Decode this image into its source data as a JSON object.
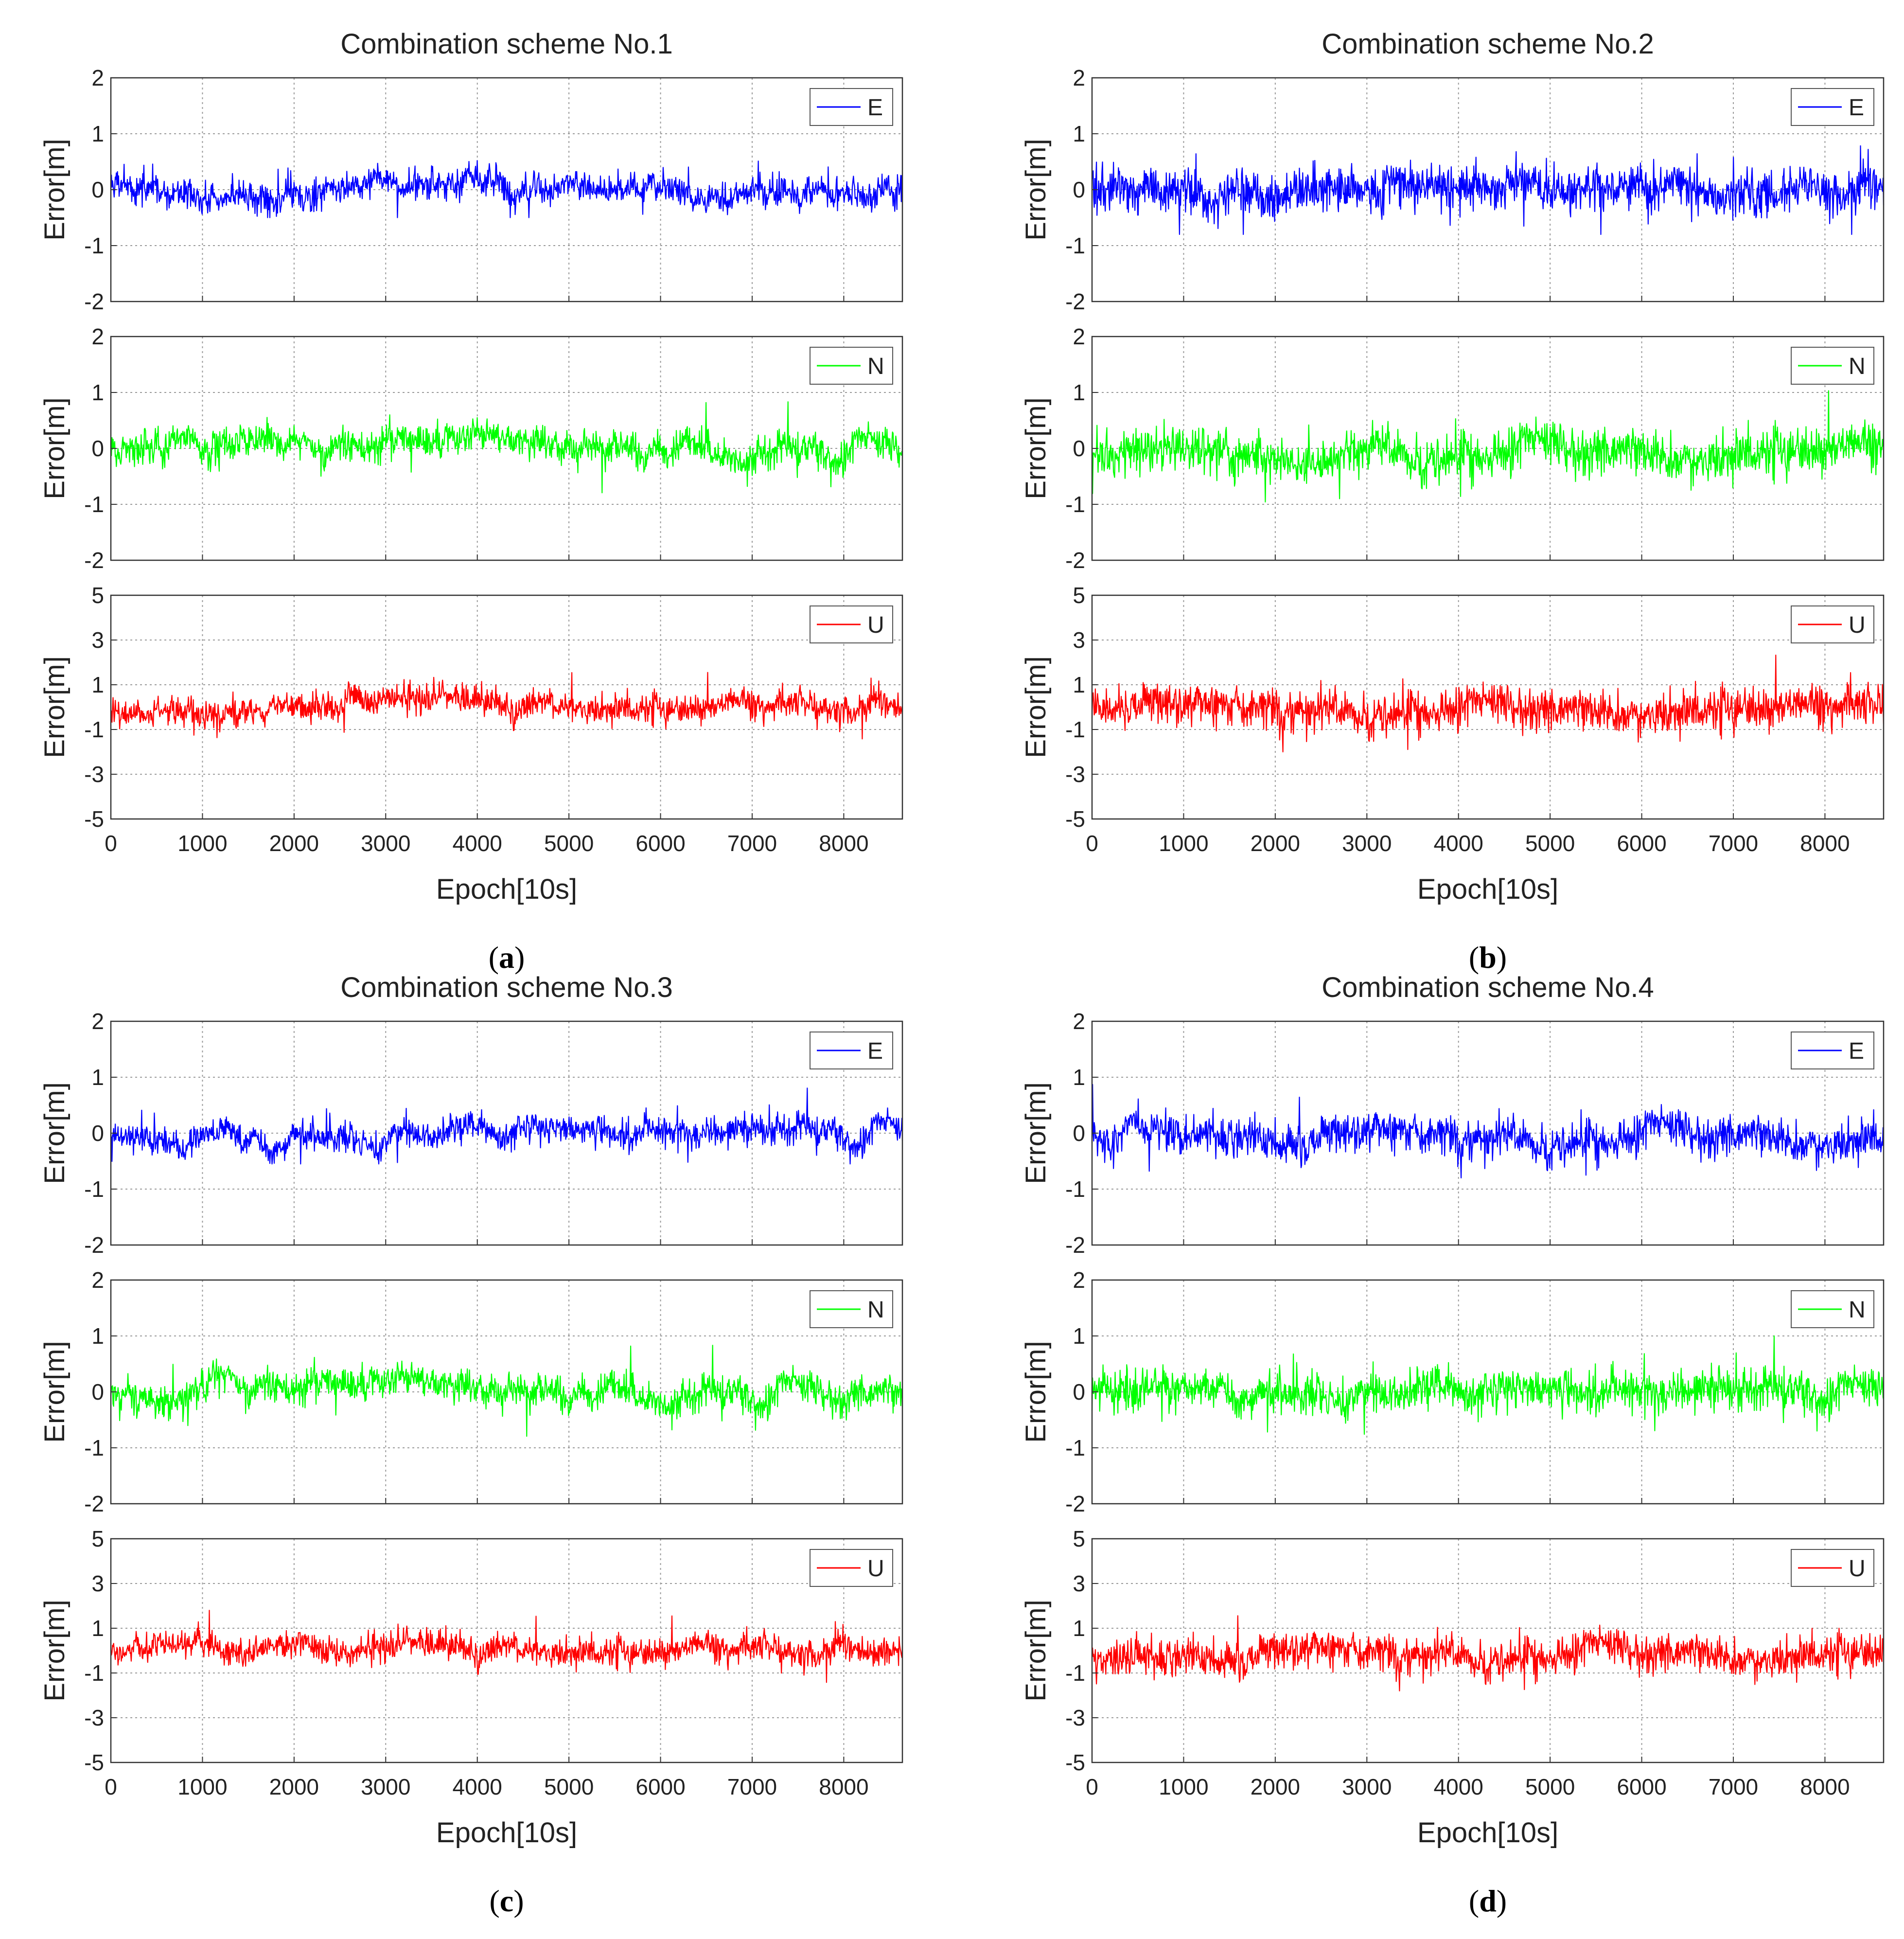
{
  "figure": {
    "axes_common": {
      "ylabel": "Error[m]",
      "xlabel": "Epoch[10s]",
      "x_ticks": [
        "0",
        "1000",
        "2000",
        "3000",
        "4000",
        "5000",
        "6000",
        "7000",
        "8000"
      ],
      "x_tick_values": [
        0,
        1000,
        2000,
        3000,
        4000,
        5000,
        6000,
        7000,
        8000
      ],
      "xlim": [
        0,
        8640
      ],
      "grid": true
    },
    "colors": {
      "E": "#0000ff",
      "N": "#00ff00",
      "U": "#ff0000"
    }
  },
  "chart_data": [
    {
      "id": "a",
      "type": "line",
      "title": "Combination scheme No.1",
      "caption_letter": "a",
      "panels": [
        {
          "component": "E",
          "legend": "E",
          "ylim": [
            -2,
            2
          ],
          "y_ticks": [
            "2",
            "1",
            "0",
            "-1",
            "-2"
          ],
          "y_tick_values": [
            2,
            1,
            0,
            -1,
            -2
          ],
          "noise_std": 0.13,
          "drift_amp": 0.15,
          "range": [
            -0.5,
            0.95
          ],
          "seed": 11
        },
        {
          "component": "N",
          "legend": "N",
          "ylim": [
            -2,
            2
          ],
          "y_ticks": [
            "2",
            "1",
            "0",
            "-1",
            "-2"
          ],
          "y_tick_values": [
            2,
            1,
            0,
            -1,
            -2
          ],
          "noise_std": 0.14,
          "drift_amp": 0.15,
          "range": [
            -1.2,
            0.95
          ],
          "seed": 12
        },
        {
          "component": "U",
          "legend": "U",
          "ylim": [
            -5,
            5
          ],
          "y_ticks": [
            "5",
            "3",
            "1",
            "-1",
            "-3",
            "-5"
          ],
          "y_tick_values": [
            5,
            3,
            1,
            -1,
            -3,
            -5
          ],
          "noise_std": 0.3,
          "drift_amp": 0.3,
          "range": [
            -1.6,
            1.8
          ],
          "seed": 13
        }
      ]
    },
    {
      "id": "b",
      "type": "line",
      "title": "Combination scheme No.2",
      "caption_letter": "b",
      "panels": [
        {
          "component": "E",
          "legend": "E",
          "ylim": [
            -2,
            2
          ],
          "y_ticks": [
            "2",
            "1",
            "0",
            "-1",
            "-2"
          ],
          "y_tick_values": [
            2,
            1,
            0,
            -1,
            -2
          ],
          "noise_std": 0.2,
          "drift_amp": 0.1,
          "range": [
            -0.8,
            1.1
          ],
          "seed": 21
        },
        {
          "component": "N",
          "legend": "N",
          "ylim": [
            -2,
            2
          ],
          "y_ticks": [
            "2",
            "1",
            "0",
            "-1",
            "-2"
          ],
          "y_tick_values": [
            2,
            1,
            0,
            -1,
            -2
          ],
          "noise_std": 0.2,
          "drift_amp": 0.12,
          "range": [
            -1.2,
            1.1
          ],
          "seed": 22
        },
        {
          "component": "U",
          "legend": "U",
          "ylim": [
            -5,
            5
          ],
          "y_ticks": [
            "5",
            "3",
            "1",
            "-1",
            "-3",
            "-5"
          ],
          "y_tick_values": [
            5,
            3,
            1,
            -1,
            -3,
            -5
          ],
          "noise_std": 0.45,
          "drift_amp": 0.2,
          "range": [
            -2.0,
            2.4
          ],
          "seed": 23
        }
      ]
    },
    {
      "id": "c",
      "type": "line",
      "title": "Combination scheme No.3",
      "caption_letter": "c",
      "panels": [
        {
          "component": "E",
          "legend": "E",
          "ylim": [
            -2,
            2
          ],
          "y_ticks": [
            "2",
            "1",
            "0",
            "-1",
            "-2"
          ],
          "y_tick_values": [
            2,
            1,
            0,
            -1,
            -2
          ],
          "noise_std": 0.12,
          "drift_amp": 0.15,
          "range": [
            -0.55,
            0.9
          ],
          "seed": 31
        },
        {
          "component": "N",
          "legend": "N",
          "ylim": [
            -2,
            2
          ],
          "y_ticks": [
            "2",
            "1",
            "0",
            "-1",
            "-2"
          ],
          "y_tick_values": [
            2,
            1,
            0,
            -1,
            -2
          ],
          "noise_std": 0.14,
          "drift_amp": 0.15,
          "range": [
            -1.1,
            1.0
          ],
          "seed": 32
        },
        {
          "component": "U",
          "legend": "U",
          "ylim": [
            -5,
            5
          ],
          "y_ticks": [
            "5",
            "3",
            "1",
            "-1",
            "-3",
            "-5"
          ],
          "y_tick_values": [
            5,
            3,
            1,
            -1,
            -3,
            -5
          ],
          "noise_std": 0.3,
          "drift_amp": 0.3,
          "range": [
            -1.5,
            1.8
          ],
          "seed": 33
        }
      ]
    },
    {
      "id": "d",
      "type": "line",
      "title": "Combination scheme No.4",
      "caption_letter": "d",
      "panels": [
        {
          "component": "E",
          "legend": "E",
          "ylim": [
            -2,
            2
          ],
          "y_ticks": [
            "2",
            "1",
            "0",
            "-1",
            "-2"
          ],
          "y_tick_values": [
            2,
            1,
            0,
            -1,
            -2
          ],
          "noise_std": 0.17,
          "drift_amp": 0.12,
          "range": [
            -0.8,
            1.3
          ],
          "seed": 41
        },
        {
          "component": "N",
          "legend": "N",
          "ylim": [
            -2,
            2
          ],
          "y_ticks": [
            "2",
            "1",
            "0",
            "-1",
            "-2"
          ],
          "y_tick_values": [
            2,
            1,
            0,
            -1,
            -2
          ],
          "noise_std": 0.17,
          "drift_amp": 0.12,
          "range": [
            -1.2,
            1.0
          ],
          "seed": 42
        },
        {
          "component": "U",
          "legend": "U",
          "ylim": [
            -5,
            5
          ],
          "y_ticks": [
            "5",
            "3",
            "1",
            "-1",
            "-3",
            "-5"
          ],
          "y_tick_values": [
            5,
            3,
            1,
            -1,
            -3,
            -5
          ],
          "noise_std": 0.4,
          "drift_amp": 0.25,
          "range": [
            -1.8,
            2.5
          ],
          "seed": 43
        }
      ]
    }
  ]
}
